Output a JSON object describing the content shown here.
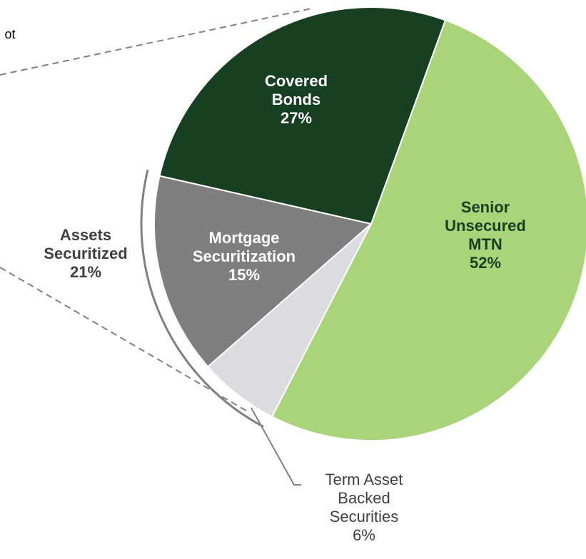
{
  "chart_data": {
    "type": "pie",
    "categories": [
      "Senior Unsecured MTN",
      "Term Asset Backed Securities",
      "Mortgage Securitization",
      "Covered Bonds"
    ],
    "values": [
      52,
      6,
      15,
      27
    ],
    "value_labels": [
      "52%",
      "6%",
      "15%",
      "27%"
    ],
    "colors": [
      "#a9d47a",
      "#dcdcdf",
      "#7f7f80",
      "#173f22"
    ],
    "label_colors": [
      "#173f22",
      "#404040",
      "#ffffff",
      "#ffffff"
    ],
    "annotations": [
      {
        "text": "ot"
      },
      {
        "label": "Assets Securitized",
        "value": 21,
        "value_label": "21%"
      }
    ]
  }
}
